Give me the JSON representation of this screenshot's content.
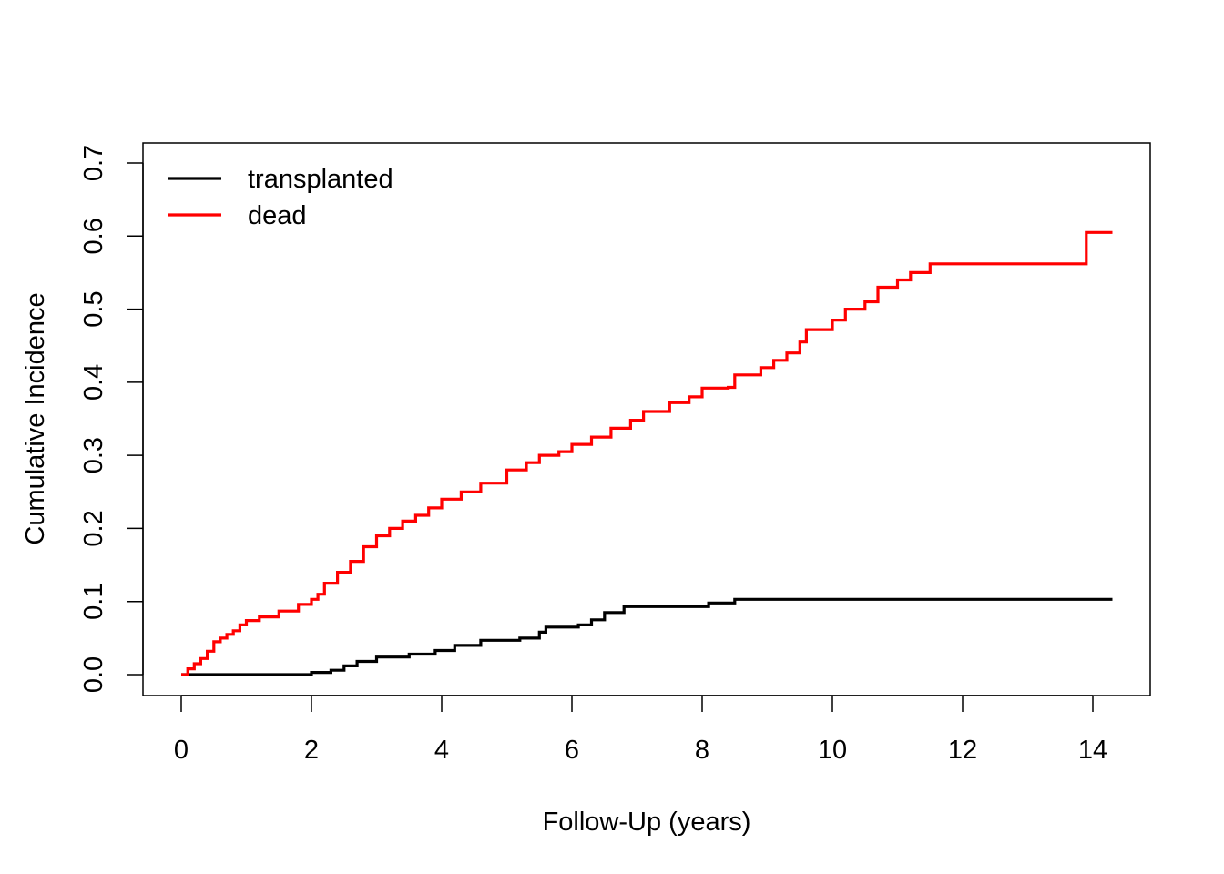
{
  "chart_data": {
    "type": "line",
    "step": true,
    "title": "",
    "xlabel": "Follow-Up (years)",
    "ylabel": "Cumulative Incidence",
    "xlim": [
      0,
      14.3
    ],
    "ylim": [
      0,
      0.7
    ],
    "x_ticks": [
      0,
      2,
      4,
      6,
      8,
      10,
      12,
      14
    ],
    "x_tick_labels": [
      "0",
      "2",
      "4",
      "6",
      "8",
      "10",
      "12",
      "14"
    ],
    "y_ticks": [
      0,
      0.1,
      0.2,
      0.3,
      0.4,
      0.5,
      0.6,
      0.7
    ],
    "y_tick_labels": [
      "0.0",
      "0.1",
      "0.2",
      "0.3",
      "0.4",
      "0.5",
      "0.6",
      "0.7"
    ],
    "grid": false,
    "legend_position": "top-left",
    "series": [
      {
        "name": "transplanted",
        "color": "#000000",
        "x": [
          0,
          1.4,
          2.0,
          2.3,
          2.5,
          2.7,
          3.0,
          3.5,
          3.9,
          4.2,
          4.6,
          5.2,
          5.5,
          5.6,
          6.1,
          6.3,
          6.5,
          6.8,
          8.1,
          8.5,
          14.3
        ],
        "y": [
          0,
          0,
          0.003,
          0.006,
          0.012,
          0.018,
          0.024,
          0.028,
          0.033,
          0.04,
          0.047,
          0.05,
          0.058,
          0.065,
          0.068,
          0.075,
          0.085,
          0.093,
          0.098,
          0.103,
          0.103
        ]
      },
      {
        "name": "dead",
        "color": "#ff0000",
        "x": [
          0,
          0.1,
          0.2,
          0.3,
          0.4,
          0.5,
          0.6,
          0.7,
          0.8,
          0.9,
          1.0,
          1.2,
          1.5,
          1.8,
          2.0,
          2.1,
          2.2,
          2.4,
          2.6,
          2.8,
          3.0,
          3.2,
          3.4,
          3.6,
          3.8,
          4.0,
          4.3,
          4.6,
          5.0,
          5.3,
          5.5,
          5.8,
          6.0,
          6.3,
          6.6,
          6.9,
          7.1,
          7.5,
          7.8,
          8.0,
          8.4,
          8.5,
          8.9,
          9.1,
          9.3,
          9.5,
          9.6,
          10.0,
          10.2,
          10.5,
          10.7,
          11.0,
          11.2,
          11.5,
          13.9,
          13.9,
          14.3
        ],
        "y": [
          0,
          0.008,
          0.015,
          0.022,
          0.032,
          0.045,
          0.05,
          0.055,
          0.06,
          0.068,
          0.074,
          0.079,
          0.087,
          0.096,
          0.103,
          0.11,
          0.125,
          0.14,
          0.155,
          0.175,
          0.19,
          0.2,
          0.21,
          0.218,
          0.228,
          0.24,
          0.25,
          0.262,
          0.28,
          0.29,
          0.3,
          0.305,
          0.315,
          0.325,
          0.337,
          0.348,
          0.36,
          0.372,
          0.38,
          0.392,
          0.393,
          0.41,
          0.42,
          0.43,
          0.44,
          0.455,
          0.472,
          0.485,
          0.5,
          0.51,
          0.53,
          0.54,
          0.55,
          0.562,
          0.562,
          0.605,
          0.605
        ]
      }
    ]
  }
}
